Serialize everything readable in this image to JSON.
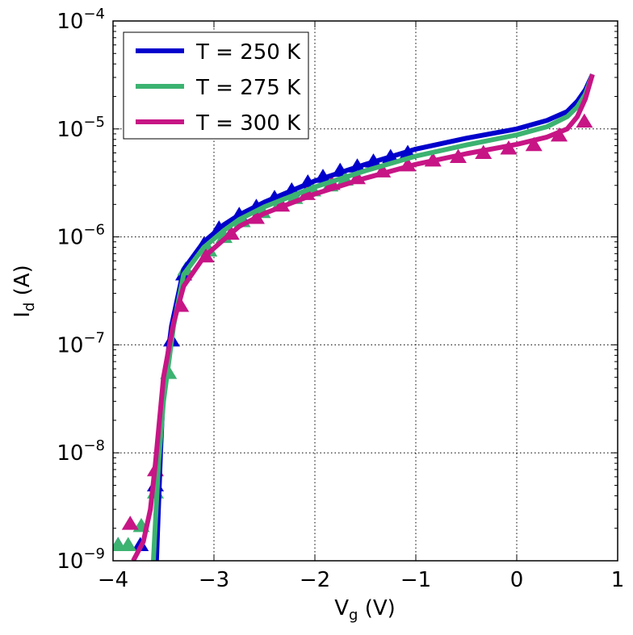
{
  "chart_data": {
    "type": "line",
    "title": "",
    "xlabel": {
      "main": "V",
      "sub": "g",
      "unit": " (V)"
    },
    "ylabel": {
      "main": "I",
      "sub": "d",
      "unit": " (A)"
    },
    "xlim": [
      -4,
      1
    ],
    "ylim": [
      1e-09,
      0.0001
    ],
    "yscale": "log",
    "grid": true,
    "legend_position": "top-left",
    "x_ticks": [
      {
        "value": -4,
        "label": "−4"
      },
      {
        "value": -3,
        "label": "−3"
      },
      {
        "value": -2,
        "label": "−2"
      },
      {
        "value": -1,
        "label": "−1"
      },
      {
        "value": 0,
        "label": "0"
      },
      {
        "value": 1,
        "label": "1"
      }
    ],
    "y_ticks": [
      {
        "value": -4,
        "base": "10",
        "exp": "−4"
      },
      {
        "value": -5,
        "base": "10",
        "exp": "−5"
      },
      {
        "value": -6,
        "base": "10",
        "exp": "−6"
      },
      {
        "value": -7,
        "base": "10",
        "exp": "−7"
      },
      {
        "value": -8,
        "base": "10",
        "exp": "−8"
      },
      {
        "value": -9,
        "base": "10",
        "exp": "−9"
      }
    ],
    "series": [
      {
        "name": "T = 250 K",
        "color": "#0000cc",
        "line": [
          [
            -3.57,
            1e-09
          ],
          [
            -3.53,
            1e-08
          ],
          [
            -3.5,
            4e-08
          ],
          [
            -3.42,
            1.5e-07
          ],
          [
            -3.3,
            5e-07
          ],
          [
            -3.1,
            9e-07
          ],
          [
            -2.9,
            1.3e-06
          ],
          [
            -2.75,
            1.6e-06
          ],
          [
            -2.5,
            2.1e-06
          ],
          [
            -2,
            3.3e-06
          ],
          [
            -1.5,
            4.7e-06
          ],
          [
            -1,
            6.5e-06
          ],
          [
            -0.5,
            8.2e-06
          ],
          [
            0,
            1e-05
          ],
          [
            0.3,
            1.2e-05
          ],
          [
            0.5,
            1.45e-05
          ],
          [
            0.6,
            1.8e-05
          ],
          [
            0.68,
            2.3e-05
          ],
          [
            0.75,
            3.2e-05
          ]
        ],
        "markers": [
          [
            -3.95,
            1.4e-09
          ],
          [
            -3.73,
            1.4e-09
          ],
          [
            -3.58,
            5e-09
          ],
          [
            -3.42,
            1.1e-07
          ],
          [
            -3.3,
            4.5e-07
          ],
          [
            -3.1,
            8.5e-07
          ],
          [
            -2.95,
            1.2e-06
          ],
          [
            -2.75,
            1.6e-06
          ],
          [
            -2.58,
            1.9e-06
          ],
          [
            -2.4,
            2.3e-06
          ],
          [
            -2.23,
            2.7e-06
          ],
          [
            -2.07,
            3.2e-06
          ],
          [
            -1.92,
            3.6e-06
          ],
          [
            -1.75,
            4.1e-06
          ],
          [
            -1.58,
            4.5e-06
          ],
          [
            -1.42,
            5e-06
          ],
          [
            -1.25,
            5.5e-06
          ],
          [
            -1.08,
            6e-06
          ]
        ]
      },
      {
        "name": "T = 275 K",
        "color": "#3cb371",
        "line": [
          [
            -3.6,
            1e-09
          ],
          [
            -3.55,
            8e-09
          ],
          [
            -3.5,
            3e-08
          ],
          [
            -3.4,
            1.5e-07
          ],
          [
            -3.3,
            4.5e-07
          ],
          [
            -3.1,
            8e-07
          ],
          [
            -2.9,
            1.15e-06
          ],
          [
            -2.75,
            1.45e-06
          ],
          [
            -2.5,
            1.9e-06
          ],
          [
            -2,
            2.9e-06
          ],
          [
            -1.5,
            4.1e-06
          ],
          [
            -1,
            5.6e-06
          ],
          [
            -0.5,
            7.1e-06
          ],
          [
            0,
            8.8e-06
          ],
          [
            0.3,
            1.05e-05
          ],
          [
            0.5,
            1.3e-05
          ],
          [
            0.6,
            1.6e-05
          ],
          [
            0.68,
            2.1e-05
          ],
          [
            0.75,
            3.2e-05
          ]
        ],
        "markers": [
          [
            -3.95,
            1.4e-09
          ],
          [
            -3.85,
            1.4e-09
          ],
          [
            -3.72,
            2.1e-09
          ],
          [
            -3.58,
            4.3e-09
          ],
          [
            -3.45,
            5.5e-08
          ],
          [
            -3.28,
            5e-07
          ],
          [
            -3.05,
            7.5e-07
          ],
          [
            -2.9,
            1e-06
          ],
          [
            -2.72,
            1.4e-06
          ],
          [
            -2.52,
            1.7e-06
          ],
          [
            -2.35,
            2e-06
          ],
          [
            -2.2,
            2.3e-06
          ],
          [
            -2.02,
            2.7e-06
          ],
          [
            -1.85,
            3e-06
          ],
          [
            -1.7,
            3.4e-06
          ]
        ]
      },
      {
        "name": "T = 300 K",
        "color": "#c71585",
        "line": [
          [
            -3.8,
            1e-09
          ],
          [
            -3.7,
            1.5e-09
          ],
          [
            -3.63,
            3e-09
          ],
          [
            -3.58,
            8e-09
          ],
          [
            -3.5,
            5e-08
          ],
          [
            -3.4,
            1.6e-07
          ],
          [
            -3.3,
            3.5e-07
          ],
          [
            -3.1,
            6.5e-07
          ],
          [
            -2.9,
            9.5e-07
          ],
          [
            -2.75,
            1.25e-06
          ],
          [
            -2.5,
            1.65e-06
          ],
          [
            -2,
            2.5e-06
          ],
          [
            -1.5,
            3.5e-06
          ],
          [
            -1,
            4.7e-06
          ],
          [
            -0.5,
            5.9e-06
          ],
          [
            0,
            7.2e-06
          ],
          [
            0.3,
            8.4e-06
          ],
          [
            0.5,
            1e-05
          ],
          [
            0.6,
            1.3e-05
          ],
          [
            0.68,
            1.9e-05
          ],
          [
            0.75,
            3.2e-05
          ]
        ],
        "markers": [
          [
            -3.83,
            2.2e-09
          ],
          [
            -3.58,
            6.9e-09
          ],
          [
            -3.33,
            2.3e-07
          ],
          [
            -3.08,
            6.6e-07
          ],
          [
            -2.83,
            1.07e-06
          ],
          [
            -2.58,
            1.5e-06
          ],
          [
            -2.33,
            1.95e-06
          ],
          [
            -2.08,
            2.5e-06
          ],
          [
            -1.83,
            3.1e-06
          ],
          [
            -1.58,
            3.5e-06
          ],
          [
            -1.33,
            4.05e-06
          ],
          [
            -1.08,
            4.6e-06
          ],
          [
            -0.83,
            5.1e-06
          ],
          [
            -0.58,
            5.5e-06
          ],
          [
            -0.33,
            6e-06
          ],
          [
            -0.08,
            6.6e-06
          ],
          [
            0.17,
            7.1e-06
          ],
          [
            0.42,
            8.7e-06
          ],
          [
            0.67,
            1.17e-05
          ]
        ]
      }
    ]
  }
}
